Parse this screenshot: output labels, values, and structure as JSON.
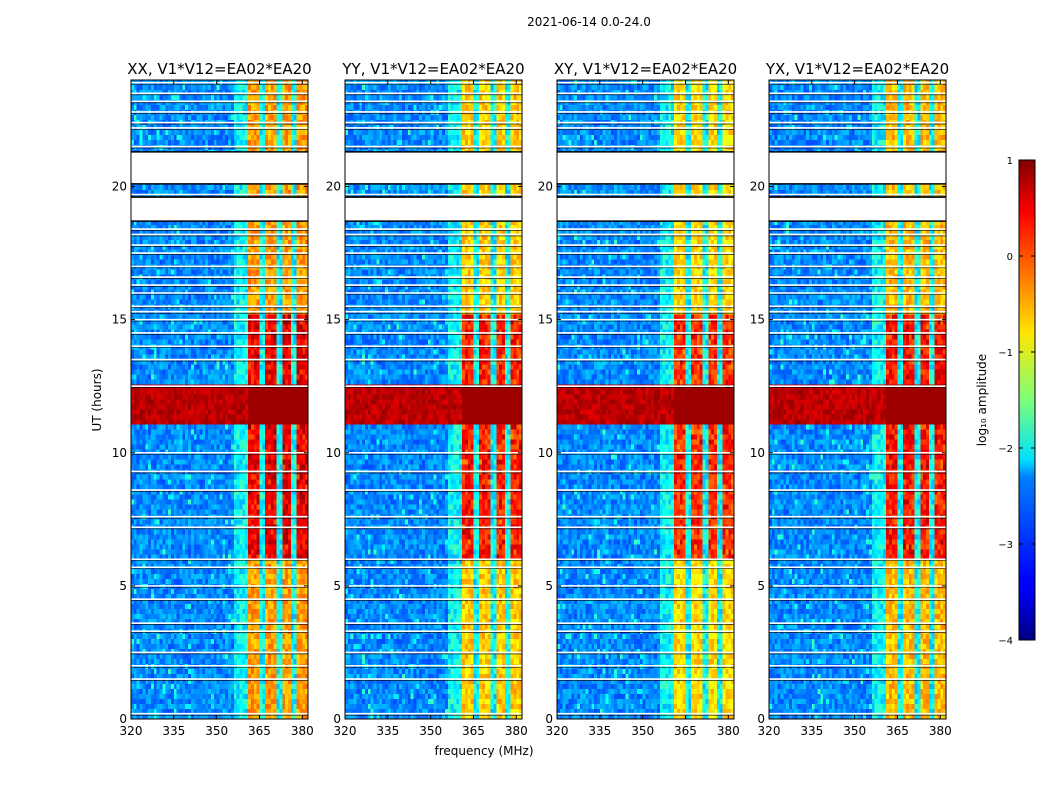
{
  "chart_data": {
    "type": "heatmap",
    "suptitle": "2021-06-14 0.0-24.0",
    "xlabel": "frequency (MHz)",
    "ylabel": "UT (hours)",
    "xlim": [
      320,
      382
    ],
    "ylim": [
      0,
      24
    ],
    "xticks": [
      "320",
      "335",
      "350",
      "365",
      "380"
    ],
    "yticks": [
      "0",
      "5",
      "10",
      "15",
      "20"
    ],
    "panels": [
      {
        "title": "XX, V1*V12=EA02*EA20",
        "rfi_boost": 0.0
      },
      {
        "title": "YY, V1*V12=EA02*EA20",
        "rfi_boost": -0.15
      },
      {
        "title": "XY, V1*V12=EA02*EA20",
        "rfi_boost": -0.2
      },
      {
        "title": "YX, V1*V12=EA02*EA20",
        "rfi_boost": -0.1
      }
    ],
    "rfi_band_mhz": [
      361,
      382
    ],
    "rfi_channel_gaps_mhz": [
      366,
      372,
      377
    ],
    "blank_time_ranges_hours": [
      [
        20.1,
        21.3
      ],
      [
        18.7,
        19.6
      ]
    ],
    "flagged_time_lines_hours": [
      0.2,
      1.5,
      2.0,
      2.5,
      3.3,
      3.6,
      4.5,
      5.0,
      5.7,
      6.0,
      7.2,
      7.6,
      8.6,
      9.3,
      10.0,
      12.5,
      13.5,
      14.0,
      14.5,
      15.0,
      15.3,
      15.5,
      16.0,
      16.3,
      16.6,
      17.0,
      17.5,
      17.8,
      18.2,
      18.4,
      19.7,
      21.5,
      22.2,
      22.4,
      22.8,
      23.2,
      23.5,
      23.9
    ],
    "strong_rfi_hours": [
      11.0,
      12.5
    ],
    "colorbar": {
      "label": "log₁₀ amplitude",
      "range": [
        -4,
        1
      ],
      "ticks": [
        "1",
        "0",
        "−1",
        "−2",
        "−3",
        "−4"
      ],
      "colormap": "jet"
    }
  }
}
